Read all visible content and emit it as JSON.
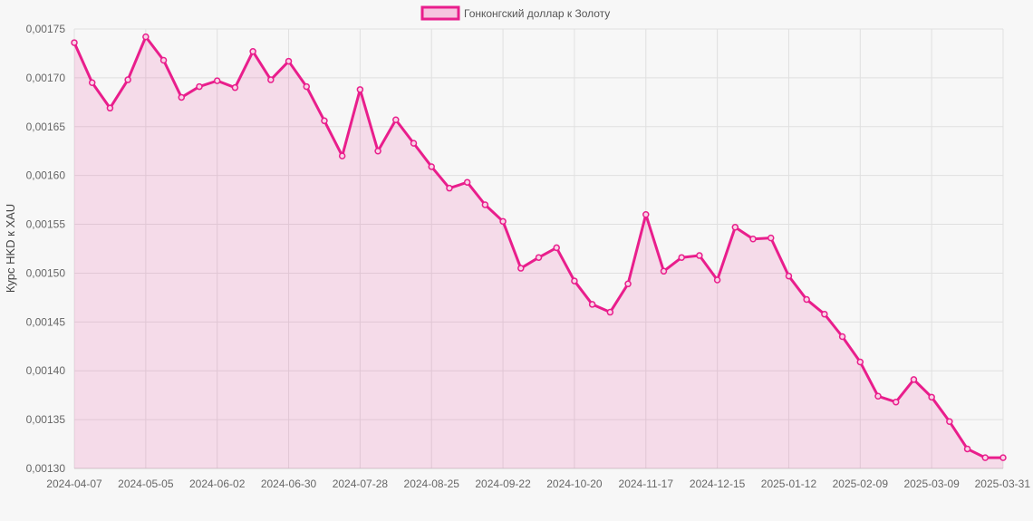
{
  "chart_data": {
    "type": "area",
    "legend": {
      "label": "Гонконгский доллар к Золоту",
      "position": "top"
    },
    "ylabel": "Курс HKD к XAU",
    "ylim": [
      0.0013,
      0.00175
    ],
    "yticks": [
      "0,00175",
      "0,00170",
      "0,00165",
      "0,00160",
      "0,00155",
      "0,00150",
      "0,00145",
      "0,00140",
      "0,00135",
      "0,00130"
    ],
    "xticks": [
      "2024-04-07",
      "2024-05-05",
      "2024-06-02",
      "2024-06-30",
      "2024-07-28",
      "2024-08-25",
      "2024-09-22",
      "2024-10-20",
      "2024-11-17",
      "2024-12-15",
      "2025-01-12",
      "2025-02-09",
      "2025-03-09",
      "2025-03-31"
    ],
    "grid": true,
    "colors": {
      "line": "#e91e8c",
      "fill": "rgba(233,30,140,0.13)",
      "grid": "#e0e0e0"
    },
    "series": [
      {
        "name": "Гонконгский доллар к Золоту",
        "values": [
          0.001736,
          0.001695,
          0.001669,
          0.001698,
          0.001742,
          0.001718,
          0.00168,
          0.001691,
          0.001697,
          0.00169,
          0.001727,
          0.001698,
          0.001717,
          0.001691,
          0.001656,
          0.00162,
          0.001688,
          0.001625,
          0.001657,
          0.001633,
          0.001609,
          0.001587,
          0.001593,
          0.00157,
          0.001553,
          0.001505,
          0.001516,
          0.001526,
          0.001492,
          0.001468,
          0.00146,
          0.001489,
          0.00156,
          0.001502,
          0.001516,
          0.001518,
          0.001493,
          0.001547,
          0.001535,
          0.001536,
          0.001497,
          0.001473,
          0.001458,
          0.001435,
          0.001409,
          0.001374,
          0.001368,
          0.001391,
          0.001373,
          0.001348,
          0.00132,
          0.001311,
          0.001311
        ]
      }
    ]
  }
}
